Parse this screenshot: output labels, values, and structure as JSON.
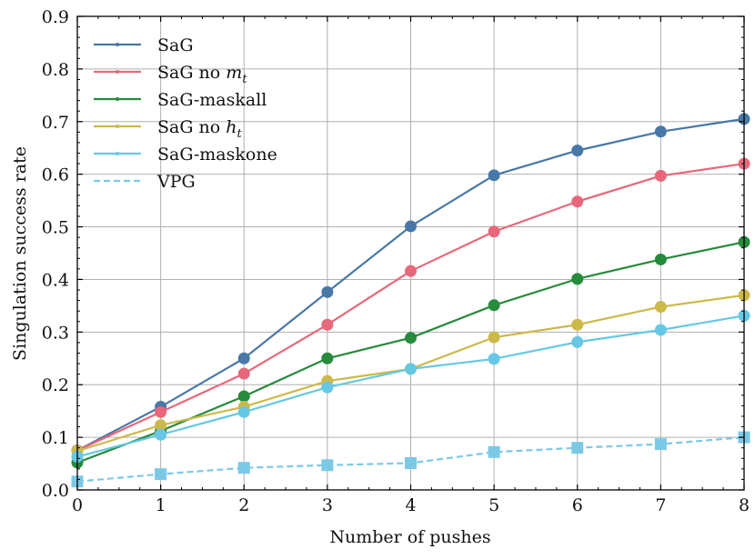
{
  "chart_data": {
    "type": "line",
    "title": "",
    "xlabel": "Number of pushes",
    "ylabel": "Singulation success rate",
    "xlim": [
      0,
      8
    ],
    "ylim": [
      0,
      0.9
    ],
    "x": [
      0,
      1,
      2,
      3,
      4,
      5,
      6,
      7,
      8
    ],
    "xticks": [
      "0",
      "1",
      "2",
      "3",
      "4",
      "5",
      "6",
      "7",
      "8"
    ],
    "yticks": [
      "0.0",
      "0.1",
      "0.2",
      "0.3",
      "0.4",
      "0.5",
      "0.6",
      "0.7",
      "0.8",
      "0.9"
    ],
    "grid": true,
    "legend_position": "top-left",
    "series": [
      {
        "name": "SaG",
        "label_main": "SaG",
        "label_italic": "",
        "label_sub": "",
        "color": "#4878a8",
        "linestyle": "solid",
        "marker": "circle",
        "values": [
          0.075,
          0.158,
          0.25,
          0.376,
          0.501,
          0.598,
          0.645,
          0.681,
          0.705
        ]
      },
      {
        "name": "SaG no m_t",
        "label_main": "SaG no ",
        "label_italic": "m",
        "label_sub": "t",
        "color": "#e8677a",
        "linestyle": "solid",
        "marker": "circle",
        "values": [
          0.075,
          0.148,
          0.221,
          0.314,
          0.416,
          0.491,
          0.548,
          0.597,
          0.62
        ]
      },
      {
        "name": "SaG-maskall",
        "label_main": "SaG-maskall",
        "label_italic": "",
        "label_sub": "",
        "color": "#268b3c",
        "linestyle": "solid",
        "marker": "circle",
        "values": [
          0.052,
          0.112,
          0.178,
          0.25,
          0.289,
          0.351,
          0.401,
          0.438,
          0.471
        ]
      },
      {
        "name": "SaG no h_t",
        "label_main": "SaG no ",
        "label_italic": "h",
        "label_sub": "t",
        "color": "#cdb94a",
        "linestyle": "solid",
        "marker": "circle",
        "values": [
          0.074,
          0.123,
          0.158,
          0.207,
          0.23,
          0.29,
          0.314,
          0.348,
          0.37
        ]
      },
      {
        "name": "SaG-maskone",
        "label_main": "SaG-maskone",
        "label_italic": "",
        "label_sub": "",
        "color": "#66c8e4",
        "linestyle": "solid",
        "marker": "circle",
        "values": [
          0.063,
          0.105,
          0.148,
          0.195,
          0.23,
          0.249,
          0.281,
          0.304,
          0.331
        ]
      },
      {
        "name": "VPG",
        "label_main": "VPG",
        "label_italic": "",
        "label_sub": "",
        "color": "#7cc9e6",
        "linestyle": "dashed",
        "marker": "square",
        "values": [
          0.016,
          0.03,
          0.042,
          0.047,
          0.051,
          0.072,
          0.08,
          0.087,
          0.1
        ]
      }
    ]
  }
}
